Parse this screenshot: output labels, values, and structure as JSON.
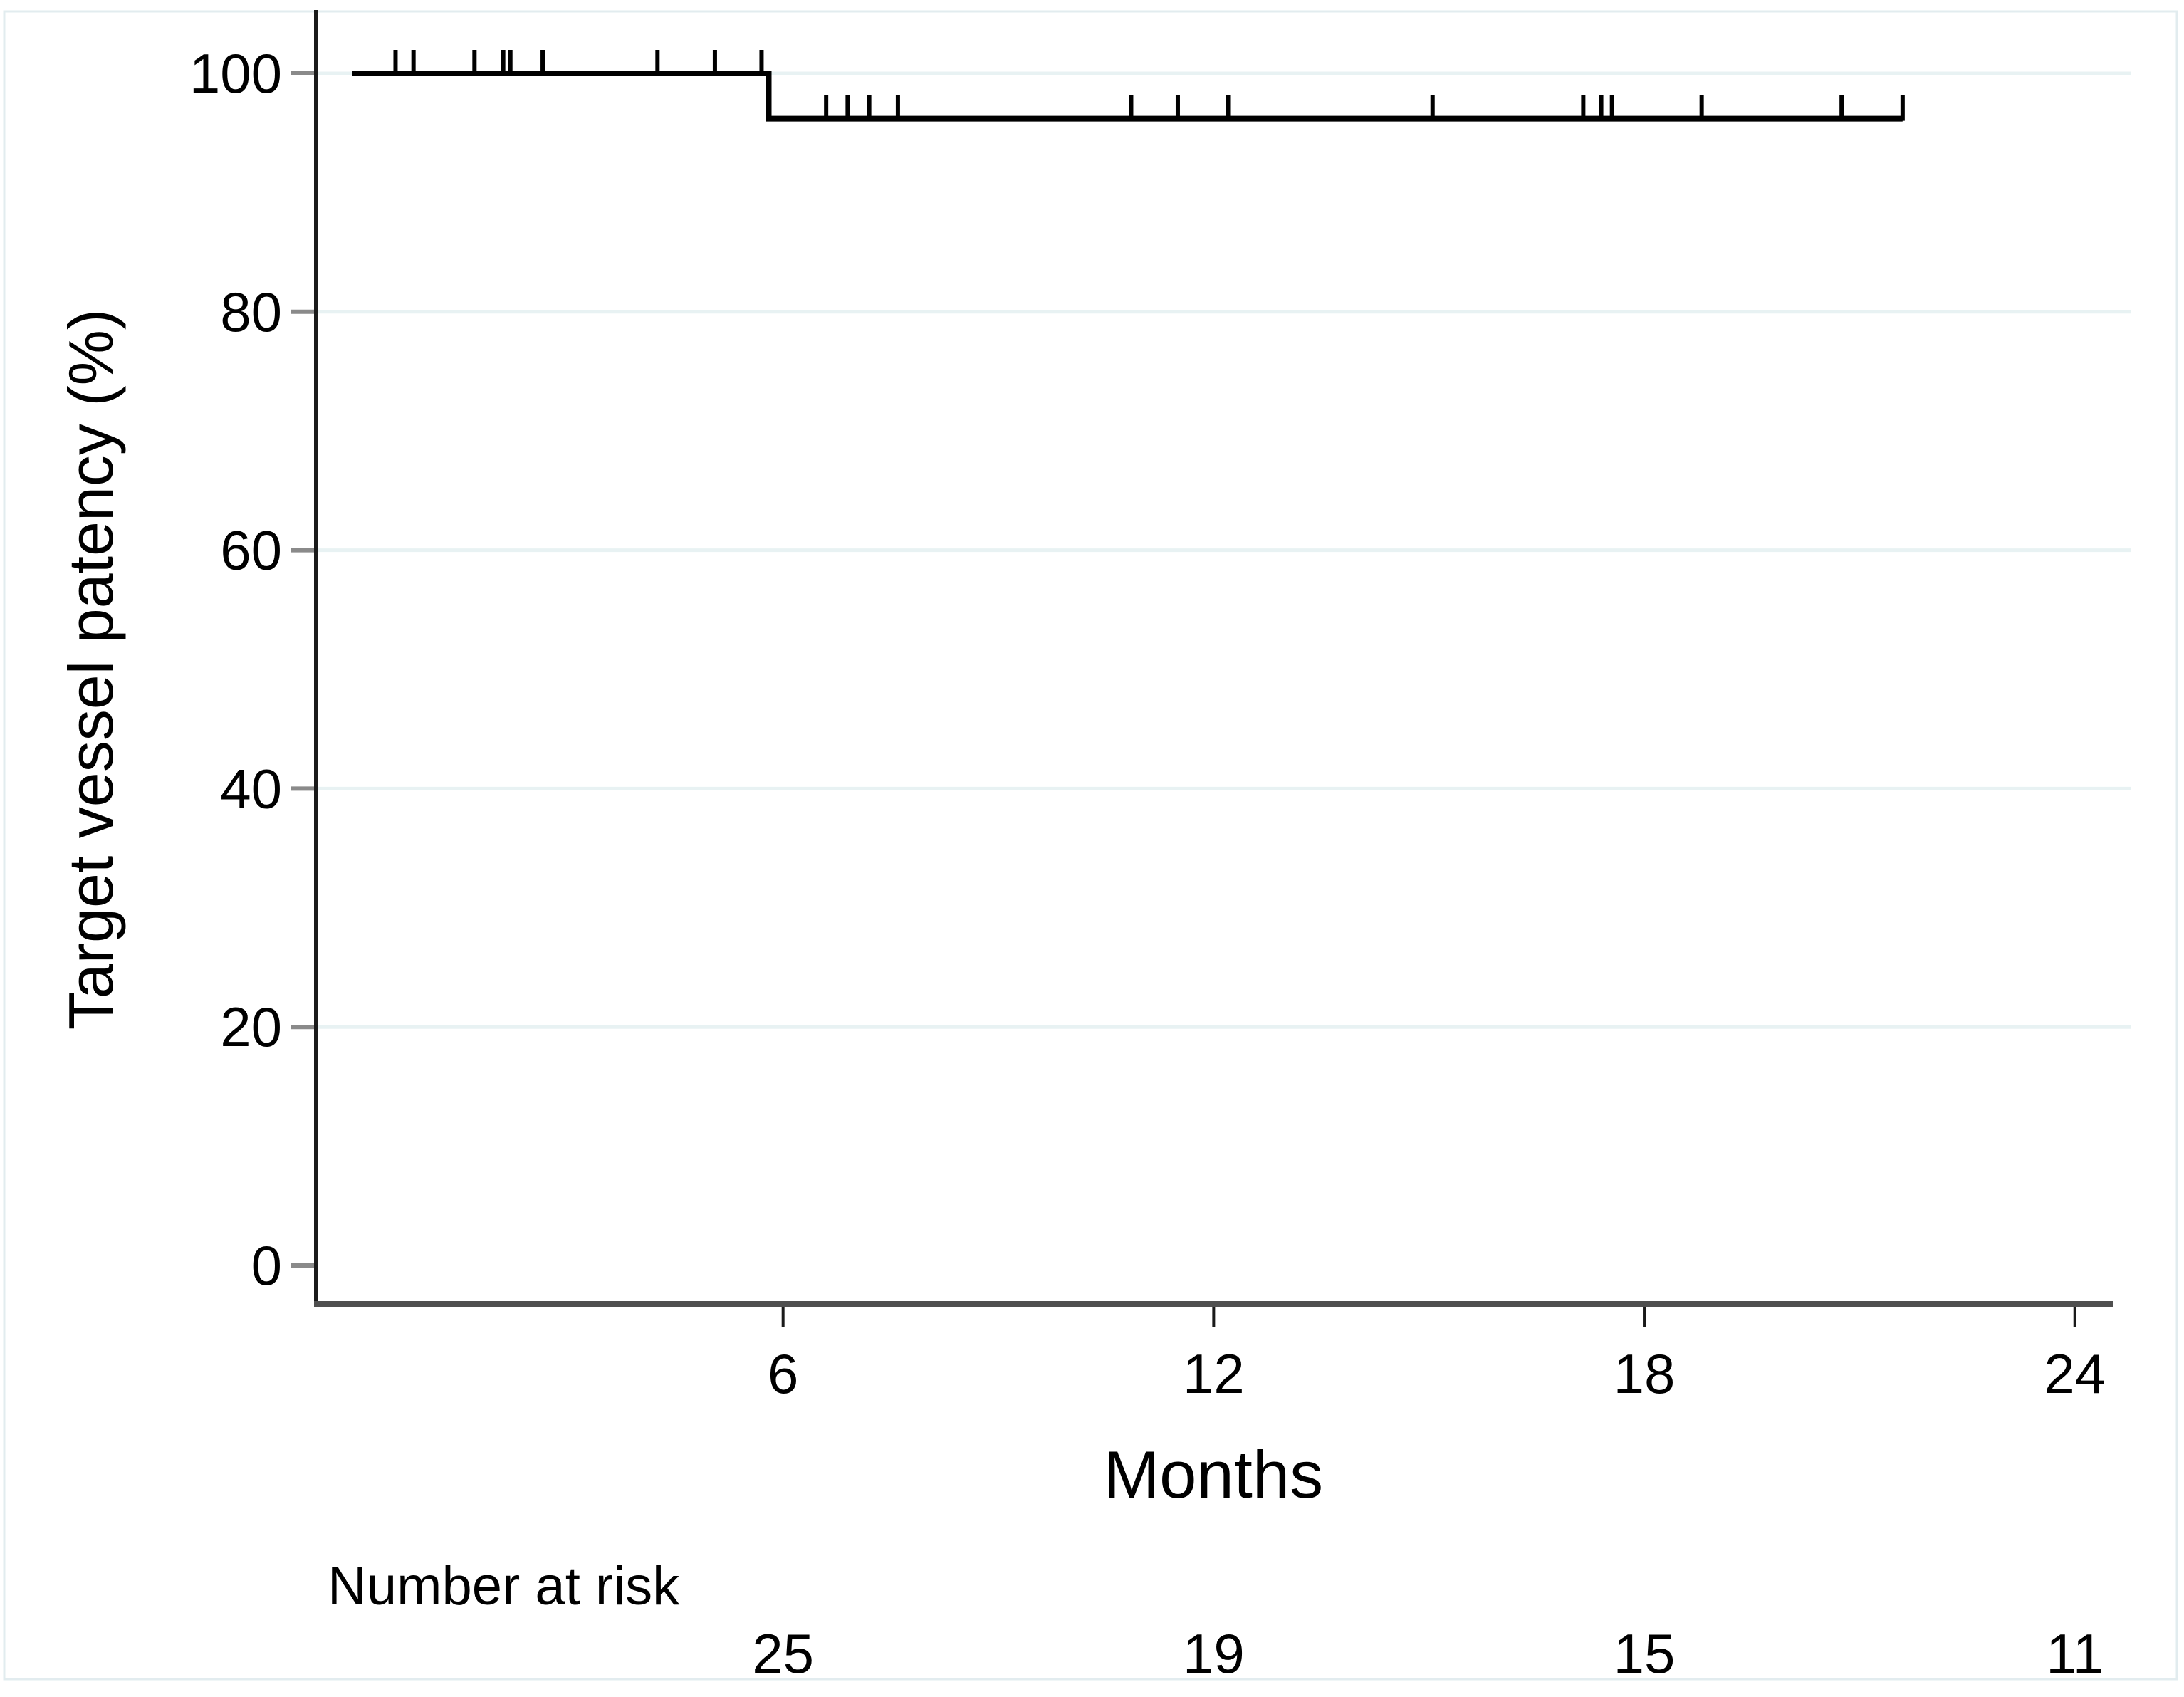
{
  "figure": {
    "background_color": "#ffffff",
    "border_color": "#e2ecef"
  },
  "chart_data": {
    "type": "line",
    "subtype": "kaplan-meier-step-curve",
    "title": "",
    "xlabel": "Months",
    "ylabel": "Target vessel patency (%)",
    "xlim": [
      0,
      24
    ],
    "ylim": [
      0,
      100
    ],
    "xticks": [
      6,
      12,
      18,
      24
    ],
    "yticks": [
      0,
      20,
      40,
      60,
      80,
      100
    ],
    "grid": "horizontal gridlines at y ticks 20-100, none at 0",
    "gridline_color": "#e8f2f3",
    "legend": "none",
    "series": [
      {
        "name": "Target vessel patency",
        "color": "#000000",
        "steps": [
          [
            0,
            100
          ],
          [
            5.8,
            100
          ],
          [
            5.8,
            96.2
          ],
          [
            21.6,
            96.2
          ]
        ],
        "censor_marks": [
          {
            "t": 0.6,
            "s": 100
          },
          {
            "t": 0.85,
            "s": 100
          },
          {
            "t": 1.7,
            "s": 100
          },
          {
            "t": 2.1,
            "s": 100
          },
          {
            "t": 2.2,
            "s": 100
          },
          {
            "t": 2.65,
            "s": 100
          },
          {
            "t": 4.25,
            "s": 100
          },
          {
            "t": 5.05,
            "s": 100
          },
          {
            "t": 5.7,
            "s": 100
          },
          {
            "t": 6.6,
            "s": 96.2
          },
          {
            "t": 6.9,
            "s": 96.2
          },
          {
            "t": 7.2,
            "s": 96.2
          },
          {
            "t": 7.6,
            "s": 96.2
          },
          {
            "t": 10.85,
            "s": 96.2
          },
          {
            "t": 11.5,
            "s": 96.2
          },
          {
            "t": 12.2,
            "s": 96.2
          },
          {
            "t": 15.05,
            "s": 96.2
          },
          {
            "t": 17.15,
            "s": 96.2
          },
          {
            "t": 17.4,
            "s": 96.2
          },
          {
            "t": 17.55,
            "s": 96.2
          },
          {
            "t": 18.8,
            "s": 96.2
          },
          {
            "t": 20.75,
            "s": 96.2
          },
          {
            "t": 21.6,
            "s": 96.2
          }
        ]
      }
    ],
    "risk_table": {
      "label": "Number at risk",
      "months": [
        6,
        12,
        18,
        24
      ],
      "values": [
        "25",
        "19",
        "15",
        "11"
      ]
    }
  }
}
